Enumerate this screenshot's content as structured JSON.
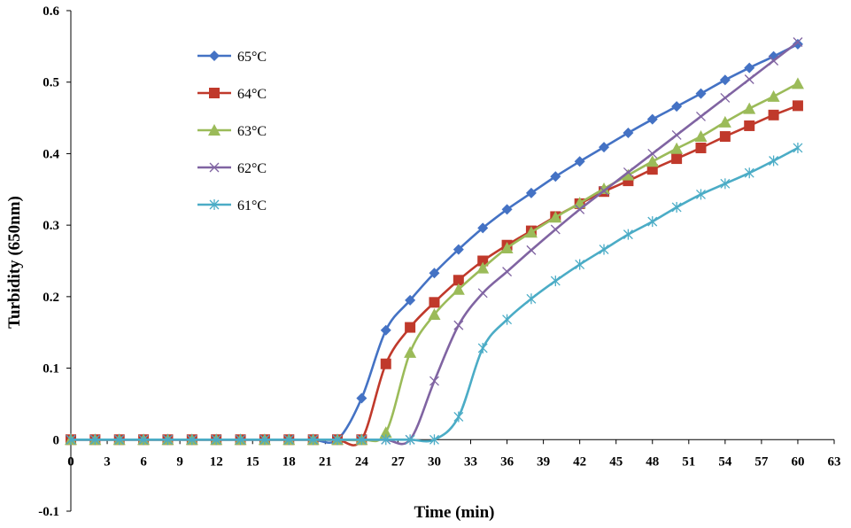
{
  "chart_data": {
    "type": "line",
    "title": "",
    "xlabel": "Time (min)",
    "ylabel": "Turbidity (650nm)",
    "xlim": [
      0,
      63
    ],
    "ylim": [
      -0.1,
      0.6
    ],
    "x_ticks": [
      "0",
      "3",
      "6",
      "9",
      "12",
      "15",
      "18",
      "21",
      "24",
      "27",
      "30",
      "33",
      "36",
      "39",
      "42",
      "45",
      "48",
      "51",
      "54",
      "57",
      "60",
      "63"
    ],
    "y_ticks": [
      "-0.1",
      "0",
      "0.1",
      "0.2",
      "0.3",
      "0.4",
      "0.5",
      "0.6"
    ],
    "grid": false,
    "legend_position": "top-left",
    "x": [
      0,
      2,
      4,
      6,
      8,
      10,
      12,
      14,
      16,
      18,
      20,
      22,
      24,
      26,
      28,
      30,
      32,
      34,
      36,
      38,
      40,
      42,
      44,
      46,
      48,
      50,
      52,
      54,
      56,
      58,
      60
    ],
    "series": [
      {
        "name": "65°C",
        "color": "#4472C4",
        "marker": "diamond",
        "values": [
          0,
          0,
          0,
          0,
          0,
          0,
          0,
          0,
          0,
          0,
          0,
          0,
          0.058,
          0.153,
          0.195,
          0.233,
          0.266,
          0.296,
          0.322,
          0.345,
          0.368,
          0.389,
          0.409,
          0.429,
          0.448,
          0.466,
          0.484,
          0.503,
          0.52,
          0.536,
          0.553
        ]
      },
      {
        "name": "64°C",
        "color": "#C0392B",
        "marker": "square",
        "values": [
          0,
          0,
          0,
          0,
          0,
          0,
          0,
          0,
          0,
          0,
          0,
          0,
          0,
          0.106,
          0.157,
          0.192,
          0.223,
          0.25,
          0.272,
          0.292,
          0.312,
          0.33,
          0.347,
          0.362,
          0.378,
          0.393,
          0.408,
          0.424,
          0.439,
          0.454,
          0.467
        ]
      },
      {
        "name": "63°C",
        "color": "#9BBB59",
        "marker": "triangle",
        "values": [
          0,
          0,
          0,
          0,
          0,
          0,
          0,
          0,
          0,
          0,
          0,
          0,
          0,
          0.01,
          0.122,
          0.175,
          0.21,
          0.24,
          0.268,
          0.29,
          0.311,
          0.331,
          0.351,
          0.37,
          0.389,
          0.407,
          0.424,
          0.444,
          0.463,
          0.48,
          0.498
        ]
      },
      {
        "name": "62°C",
        "color": "#8064A2",
        "marker": "x",
        "values": [
          0,
          0,
          0,
          0,
          0,
          0,
          0,
          0,
          0,
          0,
          0,
          0,
          0,
          0,
          0,
          0.082,
          0.16,
          0.205,
          0.235,
          0.265,
          0.294,
          0.322,
          0.348,
          0.374,
          0.4,
          0.426,
          0.452,
          0.478,
          0.504,
          0.53,
          0.556
        ]
      },
      {
        "name": "61°C",
        "color": "#4BACC6",
        "marker": "star",
        "values": [
          0,
          0,
          0,
          0,
          0,
          0,
          0,
          0,
          0,
          0,
          0,
          0,
          0,
          0,
          0,
          0,
          0.032,
          0.128,
          0.168,
          0.197,
          0.222,
          0.245,
          0.266,
          0.287,
          0.305,
          0.325,
          0.343,
          0.358,
          0.373,
          0.39,
          0.408
        ]
      }
    ]
  }
}
